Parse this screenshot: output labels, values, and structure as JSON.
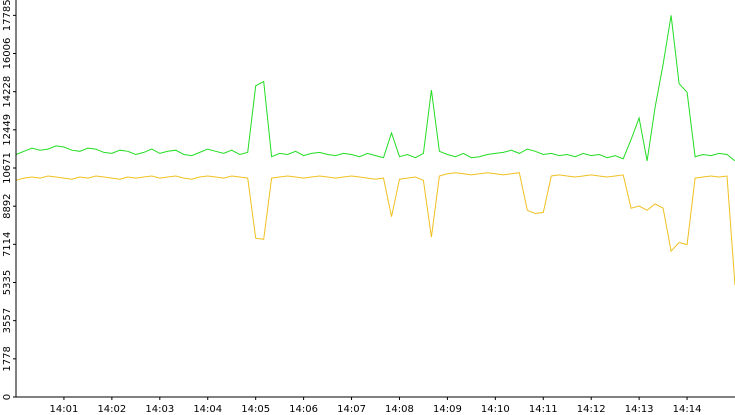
{
  "chart_data": {
    "type": "line",
    "x": [
      0,
      10,
      20,
      30,
      40,
      50,
      60,
      70,
      80,
      90,
      100,
      110,
      120,
      130,
      140,
      150,
      160,
      170,
      180,
      190,
      200,
      210,
      220,
      230,
      240,
      250,
      260,
      270,
      280,
      290,
      300,
      310,
      320,
      330,
      340,
      350,
      360,
      370,
      380,
      390,
      400,
      410,
      420,
      430,
      440,
      450,
      460,
      470,
      480,
      490,
      500,
      510,
      520,
      530,
      540,
      550,
      560,
      570,
      580,
      590,
      600,
      610,
      620,
      630,
      640,
      650,
      660,
      670,
      680,
      690,
      700,
      710,
      720,
      730,
      740,
      750,
      760,
      770,
      780,
      790,
      800,
      810,
      820,
      830,
      840,
      850,
      860,
      870,
      880,
      890,
      900
    ],
    "series": [
      {
        "color": "#22dd22",
        "values": [
          11300,
          11450,
          11600,
          11500,
          11550,
          11700,
          11650,
          11500,
          11450,
          11600,
          11550,
          11400,
          11350,
          11500,
          11450,
          11300,
          11400,
          11550,
          11350,
          11450,
          11500,
          11300,
          11250,
          11400,
          11550,
          11450,
          11350,
          11500,
          11300,
          11400,
          14500,
          14700,
          11200,
          11350,
          11300,
          11450,
          11250,
          11350,
          11400,
          11300,
          11250,
          11350,
          11300,
          11200,
          11350,
          11250,
          11150,
          12300,
          11200,
          11300,
          11150,
          11350,
          14300,
          11450,
          11300,
          11200,
          11350,
          11150,
          11200,
          11300,
          11350,
          11400,
          11500,
          11350,
          11550,
          11450,
          11300,
          11350,
          11250,
          11300,
          11200,
          11350,
          11250,
          11300,
          11150,
          11250,
          11100,
          12000,
          13000,
          11000,
          13500,
          15500,
          17785,
          14600,
          14200,
          11200,
          11300,
          11250,
          11350,
          11300,
          11000
        ]
      },
      {
        "color": "#f0c020",
        "values": [
          10100,
          10200,
          10250,
          10200,
          10300,
          10250,
          10200,
          10150,
          10250,
          10200,
          10300,
          10250,
          10200,
          10150,
          10250,
          10200,
          10250,
          10300,
          10200,
          10250,
          10300,
          10200,
          10150,
          10250,
          10300,
          10250,
          10200,
          10300,
          10250,
          10200,
          7400,
          7350,
          10200,
          10250,
          10300,
          10250,
          10200,
          10250,
          10300,
          10250,
          10200,
          10250,
          10300,
          10250,
          10200,
          10150,
          10200,
          8400,
          10150,
          10200,
          10250,
          10100,
          7450,
          10300,
          10400,
          10450,
          10400,
          10350,
          10400,
          10450,
          10400,
          10350,
          10400,
          10450,
          8700,
          8550,
          8600,
          10300,
          10350,
          10300,
          10250,
          10300,
          10350,
          10300,
          10250,
          10300,
          10350,
          8800,
          8900,
          8700,
          9000,
          8800,
          6800,
          7200,
          7100,
          10200,
          10250,
          10300,
          10250,
          10300,
          5200
        ]
      }
    ],
    "xlim": [
      0,
      900
    ],
    "xticks": [
      {
        "value": 60,
        "label": "14:01"
      },
      {
        "value": 120,
        "label": "14:02"
      },
      {
        "value": 180,
        "label": "14:03"
      },
      {
        "value": 240,
        "label": "14:04"
      },
      {
        "value": 300,
        "label": "14:05"
      },
      {
        "value": 360,
        "label": "14:06"
      },
      {
        "value": 420,
        "label": "14:07"
      },
      {
        "value": 480,
        "label": "14:08"
      },
      {
        "value": 540,
        "label": "14:09"
      },
      {
        "value": 600,
        "label": "14:10"
      },
      {
        "value": 660,
        "label": "14:11"
      },
      {
        "value": 720,
        "label": "14:12"
      },
      {
        "value": 780,
        "label": "14:13"
      },
      {
        "value": 840,
        "label": "14:14"
      }
    ],
    "ylim": [
      0,
      18500
    ],
    "yticks": [
      0,
      1778,
      3557,
      5335,
      7114,
      8892,
      10671,
      12449,
      14228,
      16006,
      17785
    ]
  }
}
